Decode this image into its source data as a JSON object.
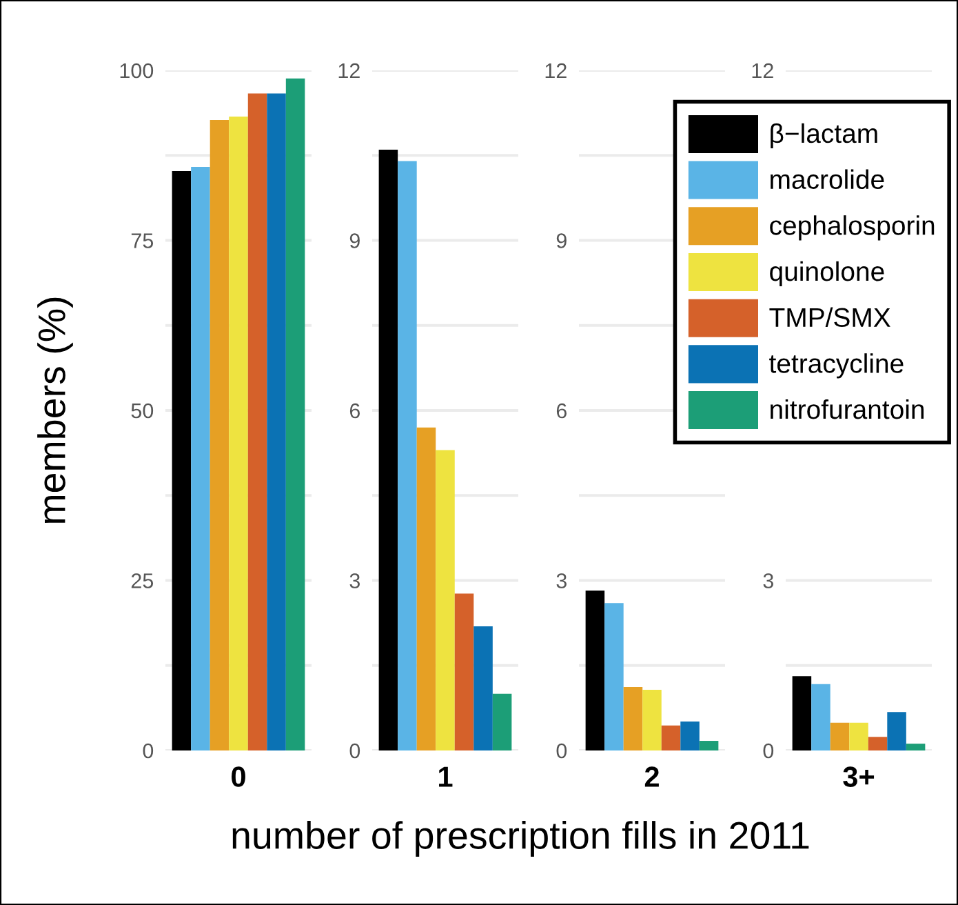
{
  "chart_data": [
    {
      "type": "bar",
      "categories": [
        "0"
      ],
      "ylabel": "members (%)",
      "xlabel": "number of prescription fills in 2011",
      "ylim": [
        0,
        100
      ],
      "yticks": [
        0,
        {
          "value": 12.5,
          "label": null
        },
        25,
        {
          "value": 37.5,
          "label": null
        },
        50,
        {
          "value": 62.5,
          "label": null
        },
        75,
        {
          "value": 87.5,
          "label": null
        },
        100
      ],
      "grid": "y",
      "series": [
        {
          "color": "#000000",
          "values": [
            85.2
          ]
        },
        {
          "color": "#5ab4e6",
          "values": [
            85.8
          ]
        },
        {
          "color": "#e6a024",
          "values": [
            92.7
          ]
        },
        {
          "color": "#eee340",
          "values": [
            93.2
          ]
        },
        {
          "color": "#d5612a",
          "values": [
            96.6
          ]
        },
        {
          "color": "#0b72b4",
          "values": [
            96.6
          ]
        },
        {
          "color": "#1c9e77",
          "values": [
            98.8
          ]
        }
      ]
    },
    {
      "type": "bar",
      "categories": [
        "1"
      ],
      "ylim": [
        0,
        12
      ],
      "yticks": [
        0,
        {
          "value": 1.5,
          "label": null
        },
        3,
        {
          "value": 4.5,
          "label": null
        },
        6,
        {
          "value": 7.5,
          "label": null
        },
        9,
        {
          "value": 10.5,
          "label": null
        },
        12
      ],
      "grid": "y",
      "series": [
        {
          "color": "#000000",
          "values": [
            10.6
          ]
        },
        {
          "color": "#5ab4e6",
          "values": [
            10.4
          ]
        },
        {
          "color": "#e6a024",
          "values": [
            5.7
          ]
        },
        {
          "color": "#eee340",
          "values": [
            5.3
          ]
        },
        {
          "color": "#d5612a",
          "values": [
            2.77
          ]
        },
        {
          "color": "#0b72b4",
          "values": [
            2.19
          ]
        },
        {
          "color": "#1c9e77",
          "values": [
            1.0
          ]
        }
      ]
    },
    {
      "type": "bar",
      "categories": [
        "2"
      ],
      "ylim": [
        0,
        12
      ],
      "yticks": [
        0,
        {
          "value": 1.5,
          "label": null
        },
        3,
        {
          "value": 4.5,
          "label": null
        },
        6,
        {
          "value": 7.5,
          "label": null
        },
        9,
        {
          "value": 10.5,
          "label": null
        },
        12
      ],
      "grid": "y",
      "series": [
        {
          "color": "#000000",
          "values": [
            2.82
          ]
        },
        {
          "color": "#5ab4e6",
          "values": [
            2.6
          ]
        },
        {
          "color": "#e6a024",
          "values": [
            1.12
          ]
        },
        {
          "color": "#eee340",
          "values": [
            1.07
          ]
        },
        {
          "color": "#d5612a",
          "values": [
            0.44
          ]
        },
        {
          "color": "#0b72b4",
          "values": [
            0.51
          ]
        },
        {
          "color": "#1c9e77",
          "values": [
            0.17
          ]
        }
      ]
    },
    {
      "type": "bar",
      "categories": [
        "3+"
      ],
      "ylim": [
        0,
        12
      ],
      "yticks": [
        0,
        {
          "value": 1.5,
          "label": null
        },
        3,
        12
      ],
      "grid": "y",
      "legend": "top left",
      "series": [
        {
          "name": "β−lactam",
          "color": "#000000",
          "values": [
            1.31
          ]
        },
        {
          "name": "macrolide",
          "color": "#5ab4e6",
          "values": [
            1.17
          ]
        },
        {
          "name": "cephalosporin",
          "color": "#e6a024",
          "values": [
            0.49
          ]
        },
        {
          "name": "quinolone",
          "color": "#eee340",
          "values": [
            0.49
          ]
        },
        {
          "name": "TMP/SMX",
          "color": "#d5612a",
          "values": [
            0.24
          ]
        },
        {
          "name": "tetracycline",
          "color": "#0b72b4",
          "values": [
            0.68
          ]
        },
        {
          "name": "nitrofurantoin",
          "color": "#1c9e77",
          "values": [
            0.12
          ]
        }
      ]
    }
  ]
}
